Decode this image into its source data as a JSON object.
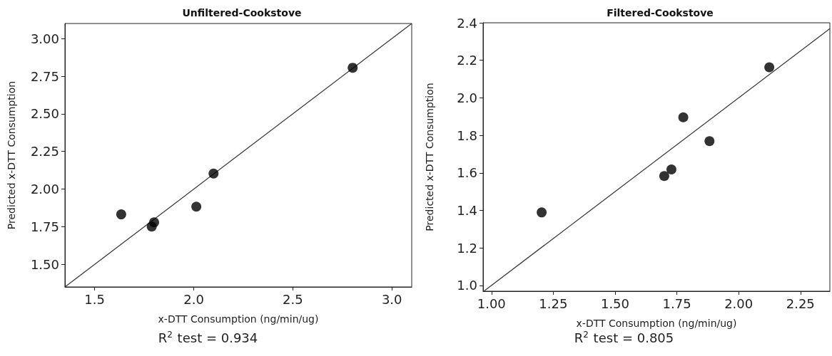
{
  "chart_data": [
    {
      "type": "scatter",
      "title": "Unfiltered-Cookstove",
      "xlabel": "x-DTT Consumption (ng/min/ug)",
      "ylabel": "Predicted x-DTT Consumption",
      "marker": "circle",
      "xlim": [
        1.35,
        3.1
      ],
      "ylim": [
        1.35,
        3.1
      ],
      "xticks": [
        {
          "value": 1.5,
          "label": "1.5"
        },
        {
          "value": 2.0,
          "label": "2.0"
        },
        {
          "value": 2.5,
          "label": "2.5"
        },
        {
          "value": 3.0,
          "label": "3.0"
        }
      ],
      "yticks": [
        {
          "value": 1.5,
          "label": "1.50"
        },
        {
          "value": 1.75,
          "label": "1.75"
        },
        {
          "value": 2.0,
          "label": "2.00"
        },
        {
          "value": 2.25,
          "label": "2.25"
        },
        {
          "value": 2.5,
          "label": "2.50"
        },
        {
          "value": 2.75,
          "label": "2.75"
        },
        {
          "value": 3.0,
          "label": "3.00"
        }
      ],
      "series": [
        {
          "type": "scatter",
          "color": "#000000",
          "x": [
            1.634,
            1.8,
            1.788,
            2.013,
            2.1,
            2.802
          ],
          "values": [
            1.832,
            1.779,
            1.751,
            1.883,
            2.103,
            2.806
          ]
        },
        {
          "type": "line",
          "color": "#333333",
          "marker": "none",
          "x": [
            1.35,
            3.1
          ],
          "values": [
            1.35,
            3.1
          ]
        }
      ],
      "annotations": [
        "R$^{2}$ test = 0.934"
      ]
    },
    {
      "type": "scatter",
      "title": "Filtered-Cookstove",
      "xlabel": "x-DTT Consumption (ng/min/ug)",
      "ylabel": "Predicted x-DTT Consumption",
      "marker": "circle",
      "xlim": [
        0.966,
        2.369
      ],
      "ylim": [
        0.969,
        2.4
      ],
      "xticks": [
        {
          "value": 1.0,
          "label": "1.00"
        },
        {
          "value": 1.25,
          "label": "1.25"
        },
        {
          "value": 1.5,
          "label": "1.50"
        },
        {
          "value": 1.75,
          "label": "1.75"
        },
        {
          "value": 2.0,
          "label": "2.00"
        },
        {
          "value": 2.25,
          "label": "2.25"
        }
      ],
      "yticks": [
        {
          "value": 1.0,
          "label": "1.0"
        },
        {
          "value": 1.2,
          "label": "1.2"
        },
        {
          "value": 1.4,
          "label": "1.4"
        },
        {
          "value": 1.6,
          "label": "1.6"
        },
        {
          "value": 1.8,
          "label": "1.8"
        },
        {
          "value": 2.0,
          "label": "2.0"
        },
        {
          "value": 2.2,
          "label": "2.2"
        },
        {
          "value": 2.4,
          "label": "2.4"
        }
      ],
      "series": [
        {
          "type": "scatter",
          "color": "#000000",
          "x": [
            1.203,
            1.699,
            1.728,
            1.776,
            1.882,
            2.124
          ],
          "values": [
            1.389,
            1.583,
            1.618,
            1.896,
            1.769,
            2.163
          ]
        },
        {
          "type": "line",
          "color": "#333333",
          "marker": "none",
          "x": [
            0.97,
            2.369
          ],
          "values": [
            0.97,
            2.369
          ]
        }
      ],
      "annotations": [
        "R$^{2}$ test = 0.805"
      ]
    }
  ]
}
